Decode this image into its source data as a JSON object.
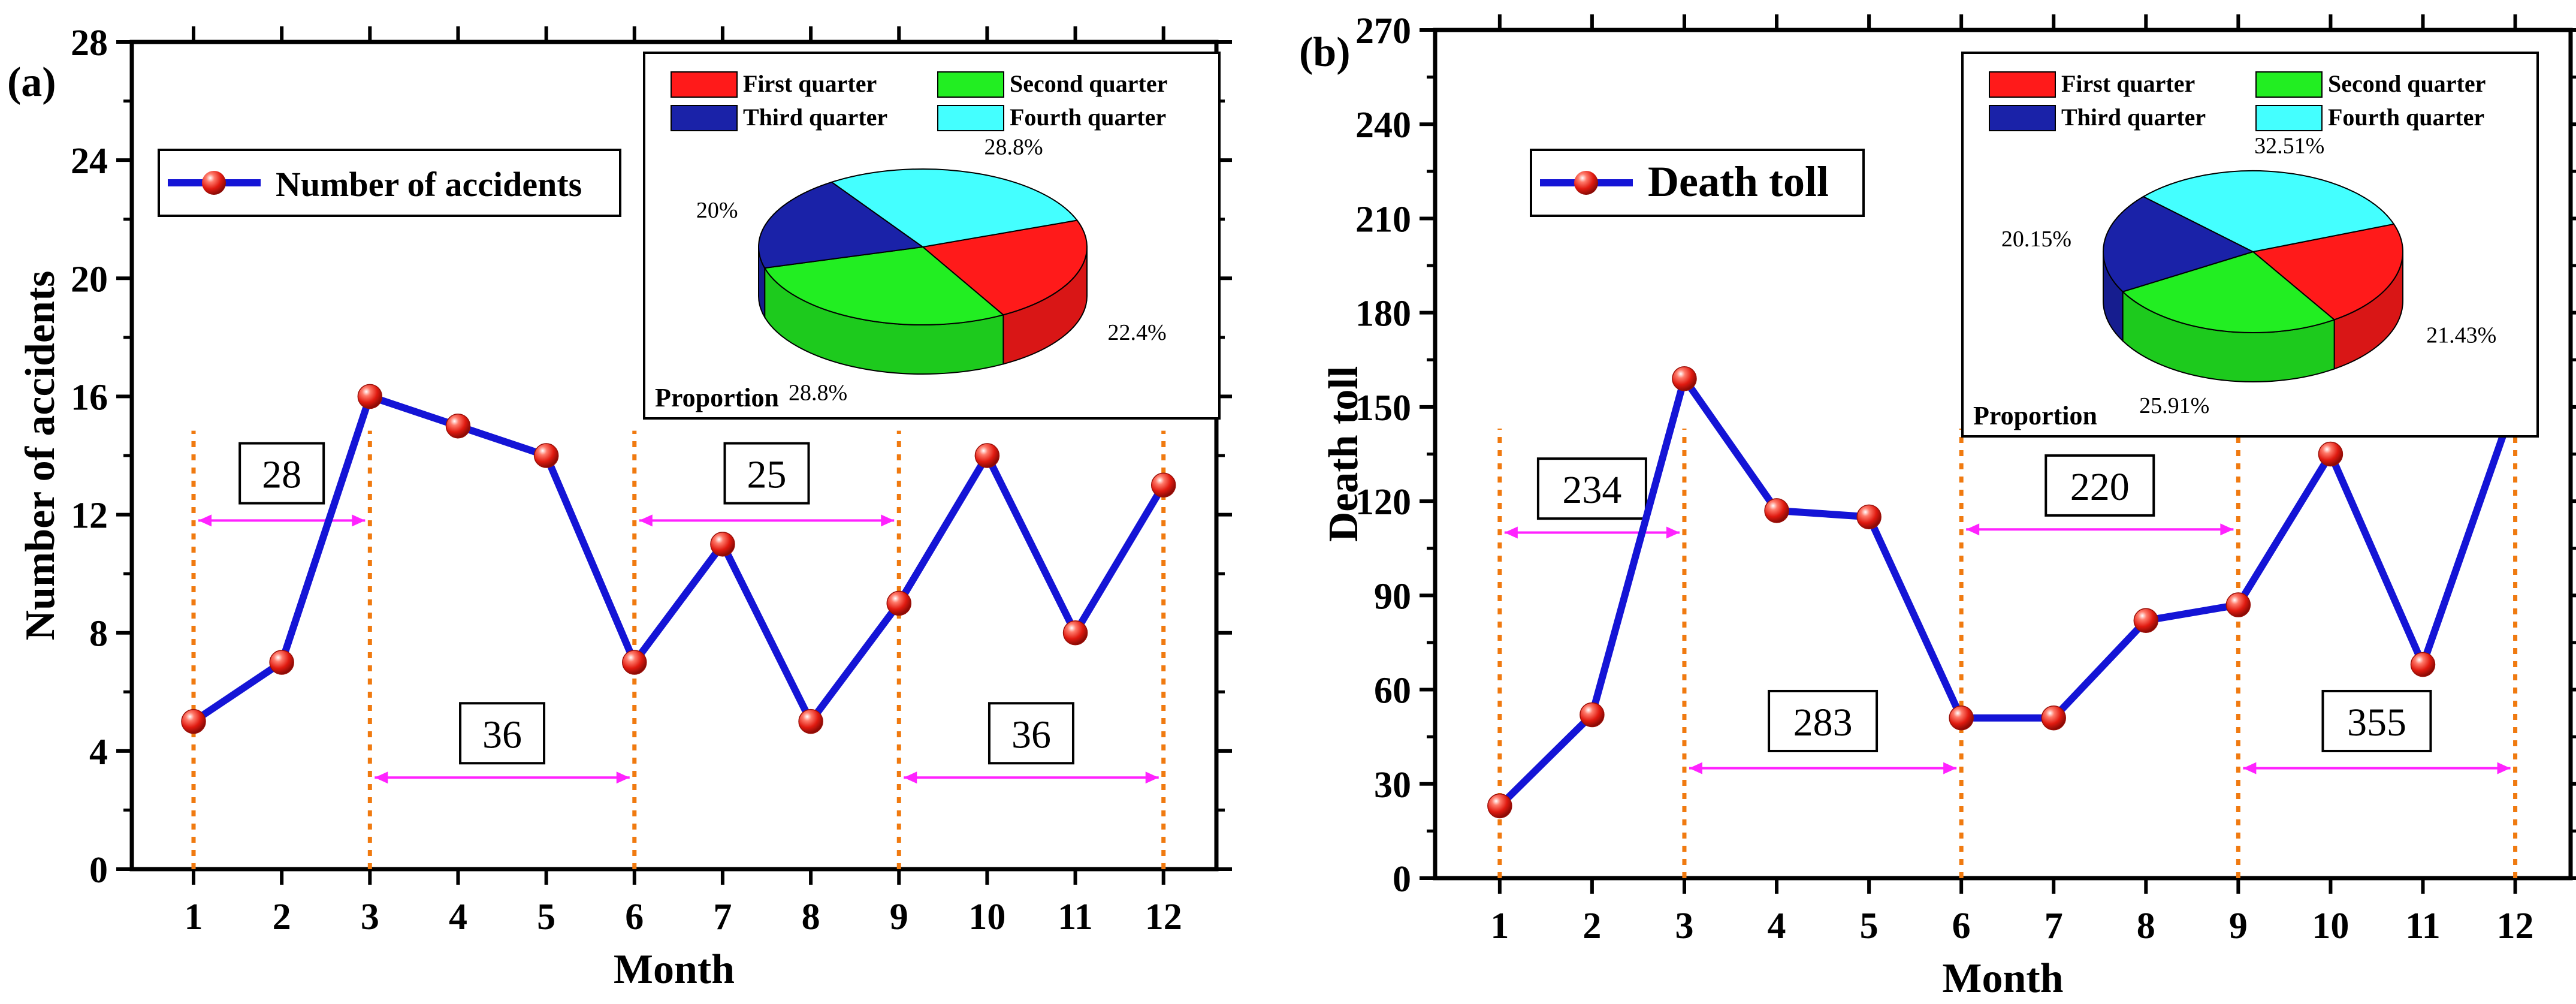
{
  "colors": {
    "line": "#1414d6",
    "marker": "#e8201a",
    "guide": "#f07a10",
    "bracket": "#ff22ff",
    "axis": "#000000",
    "q1": "#ff1a1a",
    "q2": "#22ee22",
    "q3": "#1a22a8",
    "q4": "#44ffff"
  },
  "quarter_names": [
    "First quarter",
    "Second quarter",
    "Third quarter",
    "Fourth quarter"
  ],
  "chart_data": [
    {
      "type": "line",
      "panel_label": "(a)",
      "xlabel": "Month",
      "ylabel": "Number of accidents",
      "ylim": [
        0,
        28
      ],
      "yticks": [
        0,
        4,
        8,
        12,
        16,
        20,
        24,
        28
      ],
      "x": [
        1,
        2,
        3,
        4,
        5,
        6,
        7,
        8,
        9,
        10,
        11,
        12
      ],
      "series": [
        {
          "name": "Number of accidents",
          "values": [
            5,
            7,
            16,
            15,
            14,
            7,
            11,
            5,
            9,
            14,
            8,
            13
          ]
        }
      ],
      "guides": [
        1,
        3,
        6,
        9,
        12
      ],
      "quarter_totals": [
        {
          "label": "28",
          "from": 1,
          "to": 3,
          "y": 11.8,
          "box_y": 13.4
        },
        {
          "label": "36",
          "from": 3,
          "to": 6,
          "y": 3.1,
          "box_y": 4.6
        },
        {
          "label": "25",
          "from": 6,
          "to": 9,
          "y": 11.8,
          "box_y": 13.4
        },
        {
          "label": "36",
          "from": 9,
          "to": 12,
          "y": 3.1,
          "box_y": 4.6
        }
      ],
      "legend": {
        "entry": "Number of accidents",
        "position": "top-left"
      },
      "pie": {
        "title": "Proportion",
        "values": [
          22.4,
          28.8,
          20,
          28.8
        ],
        "labels": [
          "22.4%",
          "28.8%",
          "20%",
          "28.8%"
        ]
      }
    },
    {
      "type": "line",
      "panel_label": "(b)",
      "xlabel": "Month",
      "ylabel": "Death toll",
      "ylim": [
        0,
        270
      ],
      "yticks": [
        0,
        30,
        60,
        90,
        120,
        150,
        180,
        210,
        240,
        270
      ],
      "x": [
        1,
        2,
        3,
        4,
        5,
        6,
        7,
        8,
        9,
        10,
        11,
        12
      ],
      "series": [
        {
          "name": "Death toll",
          "values": [
            23,
            52,
            159,
            117,
            115,
            51,
            51,
            82,
            87,
            135,
            68,
            152
          ]
        }
      ],
      "guides": [
        1,
        3,
        6,
        9,
        12
      ],
      "quarter_totals": [
        {
          "label": "234",
          "from": 1,
          "to": 3,
          "y": 110,
          "box_y": 124
        },
        {
          "label": "283",
          "from": 3,
          "to": 6,
          "y": 35,
          "box_y": 50
        },
        {
          "label": "220",
          "from": 6,
          "to": 9,
          "y": 111,
          "box_y": 125
        },
        {
          "label": "355",
          "from": 9,
          "to": 12,
          "y": 35,
          "box_y": 50
        }
      ],
      "legend": {
        "entry": "Death toll",
        "position": "top-left"
      },
      "pie": {
        "title": "Proportion",
        "values": [
          21.43,
          25.91,
          20.15,
          32.51
        ],
        "labels": [
          "21.43%",
          "25.91%",
          "20.15%",
          "32.51%"
        ]
      }
    }
  ]
}
